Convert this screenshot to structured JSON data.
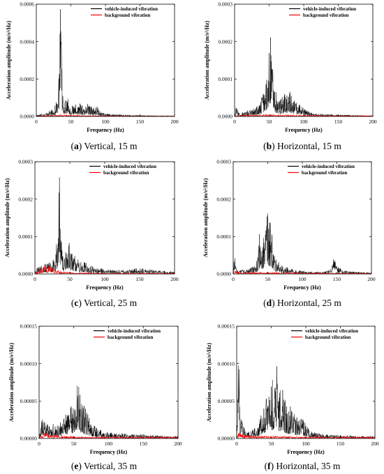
{
  "chart_data": [
    {
      "type": "line",
      "caption_letter": "a",
      "caption_text": "Vertical, 15 m",
      "xlabel": "Frequency (Hz)",
      "ylabel": "Acceleration amplitude (m/s²/Hz)",
      "xlim": [
        0,
        200
      ],
      "ylim": [
        0,
        0.0006
      ],
      "xticks": [
        "0",
        "50",
        "100",
        "150",
        "200"
      ],
      "yticks": [
        "0.0000",
        "0.0002",
        "0.0004",
        "0.0006"
      ],
      "legend": "top-right",
      "grid": false,
      "series": [
        {
          "name": "vehicle-induced vibration",
          "color": "#000000",
          "x": [
            0,
            5,
            10,
            15,
            20,
            25,
            28,
            30,
            32,
            34,
            35,
            36,
            37,
            38,
            40,
            42,
            45,
            48,
            50,
            55,
            60,
            65,
            70,
            75,
            80,
            85,
            88,
            90,
            95,
            100,
            110,
            120,
            130,
            140,
            150,
            160,
            170,
            180,
            190,
            200
          ],
          "y": [
            5e-06,
            1e-05,
            1.5e-05,
            2e-05,
            3e-05,
            4e-05,
            6e-05,
            0.0001,
            0.00018,
            0.00035,
            0.00055,
            0.00042,
            0.00025,
            0.00014,
            8e-05,
            9e-05,
            0.00012,
            7e-05,
            6e-05,
            5e-05,
            7e-05,
            6e-05,
            5e-05,
            7e-05,
            5e-05,
            4e-05,
            6e-05,
            3e-05,
            2e-05,
            1.5e-05,
            1e-05,
            1e-05,
            8e-06,
            6e-06,
            6e-06,
            5e-06,
            5e-06,
            4e-06,
            4e-06,
            3e-06
          ]
        },
        {
          "name": "background vibration",
          "color": "#ff0000",
          "x": [
            0,
            10,
            20,
            30,
            40,
            50,
            60,
            80,
            100,
            120,
            150,
            200
          ],
          "y": [
            2e-06,
            4e-06,
            5e-06,
            8e-06,
            8e-06,
            6e-06,
            5e-06,
            4e-06,
            3e-06,
            3e-06,
            2e-06,
            2e-06
          ]
        }
      ]
    },
    {
      "type": "line",
      "caption_letter": "b",
      "caption_text": "Horizontal, 15 m",
      "xlabel": "Frequency (Hz)",
      "ylabel": "Acceleration amplitude (m/s²/Hz)",
      "xlim": [
        0,
        200
      ],
      "ylim": [
        0,
        0.0003
      ],
      "xticks": [
        "0",
        "50",
        "100",
        "150",
        "200"
      ],
      "yticks": [
        "0.0000",
        "0.0001",
        "0.0002",
        "0.0003"
      ],
      "legend": "top-right",
      "grid": false,
      "series": [
        {
          "name": "vehicle-induced vibration",
          "color": "#000000",
          "x": [
            0,
            3,
            5,
            10,
            20,
            30,
            35,
            40,
            45,
            48,
            50,
            52,
            54,
            56,
            58,
            60,
            62,
            65,
            70,
            75,
            80,
            82,
            85,
            90,
            95,
            100,
            110,
            120,
            130,
            140,
            150,
            160,
            170,
            180,
            190,
            200
          ],
          "y": [
            5e-06,
            3e-05,
            1e-05,
            1e-05,
            1.5e-05,
            2e-05,
            3e-05,
            5e-05,
            0.0001,
            0.00015,
            0.00019,
            0.00023,
            0.00018,
            0.00013,
            9e-05,
            6e-05,
            5e-05,
            4e-05,
            5e-05,
            6e-05,
            7e-05,
            6e-05,
            5e-05,
            4e-05,
            3e-05,
            2e-05,
            1e-05,
            8e-06,
            6e-06,
            5e-06,
            4e-06,
            4e-06,
            3e-06,
            3e-06,
            2e-06,
            2e-06
          ]
        },
        {
          "name": "background vibration",
          "color": "#ff0000",
          "x": [
            0,
            10,
            30,
            50,
            70,
            100,
            150,
            200
          ],
          "y": [
            2e-06,
            3e-06,
            4e-06,
            5e-06,
            4e-06,
            3e-06,
            2e-06,
            2e-06
          ]
        }
      ]
    },
    {
      "type": "line",
      "caption_letter": "c",
      "caption_text": "Vertical, 25 m",
      "xlabel": "Frequency (Hz)",
      "ylabel": "Acceleration amplitude (m/s²/Hz)",
      "xlim": [
        0,
        200
      ],
      "ylim": [
        0,
        0.0003
      ],
      "xticks": [
        "0",
        "50",
        "100",
        "150",
        "200"
      ],
      "yticks": [
        "0.0000",
        "0.0001",
        "0.0002",
        "0.0003"
      ],
      "legend": "top-right",
      "grid": false,
      "series": [
        {
          "name": "vehicle-induced vibration",
          "color": "#000000",
          "x": [
            0,
            5,
            10,
            15,
            20,
            25,
            30,
            32,
            34,
            35,
            36,
            38,
            40,
            42,
            45,
            47,
            50,
            55,
            60,
            65,
            70,
            80,
            90,
            100,
            110,
            120,
            130,
            140,
            150,
            160,
            170,
            180,
            190,
            200
          ],
          "y": [
            1e-05,
            2e-05,
            2e-05,
            3e-05,
            3e-05,
            3e-05,
            5e-05,
            0.0001,
            0.00018,
            0.00026,
            0.0002,
            0.00011,
            6e-05,
            5e-05,
            7e-05,
            9e-05,
            7e-05,
            5e-05,
            4e-05,
            3e-05,
            3e-05,
            2e-05,
            1.5e-05,
            1.2e-05,
            1e-05,
            1e-05,
            1e-05,
            1.2e-05,
            1.5e-05,
            1.2e-05,
            1e-05,
            8e-06,
            7e-06,
            6e-06
          ]
        },
        {
          "name": "background vibration",
          "color": "#ff0000",
          "x": [
            0,
            5,
            10,
            15,
            20,
            25,
            30,
            40,
            50,
            60,
            80,
            100,
            150,
            200
          ],
          "y": [
            5e-06,
            1e-05,
            1.8e-05,
            2.2e-05,
            2e-05,
            1.5e-05,
            1e-05,
            6e-06,
            4e-06,
            3e-06,
            3e-06,
            2e-06,
            2e-06,
            2e-06
          ]
        }
      ]
    },
    {
      "type": "line",
      "caption_letter": "d",
      "caption_text": "Horizontal, 25 m",
      "xlabel": "Frequency (Hz)",
      "ylabel": "Acceleration amplitude (m/s²/Hz)",
      "xlim": [
        0,
        200
      ],
      "ylim": [
        0,
        0.0003
      ],
      "xticks": [
        "0",
        "50",
        "100",
        "150",
        "200"
      ],
      "yticks": [
        "0.0000",
        "0.0001",
        "0.0002",
        "0.0003"
      ],
      "legend": "top-right",
      "grid": false,
      "series": [
        {
          "name": "vehicle-induced vibration",
          "color": "#000000",
          "x": [
            0,
            3,
            5,
            10,
            20,
            30,
            35,
            38,
            40,
            42,
            45,
            48,
            50,
            52,
            54,
            56,
            58,
            60,
            65,
            70,
            80,
            90,
            100,
            110,
            120,
            130,
            140,
            145,
            150,
            160,
            170,
            180,
            190,
            200
          ],
          "y": [
            5e-06,
            8e-05,
            1e-05,
            1e-05,
            1e-05,
            2e-05,
            4e-05,
            0.0001,
            6e-05,
            8e-05,
            0.00011,
            0.00014,
            0.00016,
            0.00012,
            0.00015,
            0.0001,
            7e-05,
            4e-05,
            3e-05,
            2e-05,
            1.5e-05,
            1e-05,
            8e-06,
            6e-06,
            5e-06,
            5e-06,
            1e-05,
            4e-05,
            2e-05,
            8e-06,
            6e-06,
            5e-06,
            4e-06,
            4e-06
          ]
        },
        {
          "name": "background vibration",
          "color": "#ff0000",
          "x": [
            0,
            3,
            10,
            30,
            50,
            100,
            150,
            200
          ],
          "y": [
            2e-06,
            1e-05,
            3e-06,
            4e-06,
            4e-06,
            3e-06,
            2e-06,
            2e-06
          ]
        }
      ]
    },
    {
      "type": "line",
      "caption_letter": "e",
      "caption_text": "Vertical, 35 m",
      "xlabel": "Frequency (Hz)",
      "ylabel": "Acceleration amplitude (m/s²/Hz)",
      "xlim": [
        0,
        200
      ],
      "ylim": [
        0,
        0.00015
      ],
      "xticks": [
        "0",
        "50",
        "100",
        "150",
        "200"
      ],
      "yticks": [
        "0.00000",
        "0.00005",
        "0.00010",
        "0.00015"
      ],
      "legend": "top-right",
      "grid": false,
      "series": [
        {
          "name": "vehicle-induced vibration",
          "color": "#000000",
          "x": [
            0,
            5,
            8,
            10,
            15,
            20,
            25,
            30,
            35,
            40,
            45,
            50,
            52,
            55,
            58,
            60,
            62,
            65,
            70,
            75,
            80,
            85,
            90,
            95,
            100,
            110,
            120,
            130,
            140,
            150,
            160,
            170,
            180,
            190,
            200
          ],
          "y": [
            5e-06,
            3e-05,
            2e-05,
            2e-05,
            1.5e-05,
            1.8e-05,
            1.5e-05,
            2e-05,
            2.8e-05,
            3.5e-05,
            4e-05,
            5e-05,
            6e-05,
            8.5e-05,
            6e-05,
            5e-05,
            4.5e-05,
            4e-05,
            3e-05,
            2e-05,
            1.5e-05,
            1.2e-05,
            1e-05,
            8e-06,
            8e-06,
            6e-06,
            6e-06,
            5e-06,
            5e-06,
            5e-06,
            4e-06,
            4e-06,
            3e-06,
            3e-06,
            3e-06
          ]
        },
        {
          "name": "background vibration",
          "color": "#ff0000",
          "x": [
            0,
            5,
            10,
            15,
            20,
            30,
            40,
            50,
            60,
            100,
            150,
            200
          ],
          "y": [
            2e-06,
            5e-06,
            8e-06,
            7e-06,
            5e-06,
            4e-06,
            3e-06,
            3e-06,
            2e-06,
            2e-06,
            2e-06,
            2e-06
          ]
        }
      ]
    },
    {
      "type": "line",
      "caption_letter": "f",
      "caption_text": "Horizontal, 35 m",
      "xlabel": "Frequency (Hz)",
      "ylabel": "Acceleration amplitude (m/s²/Hz)",
      "xlim": [
        0,
        200
      ],
      "ylim": [
        0,
        0.00015
      ],
      "xticks": [
        "0",
        "50",
        "100",
        "150",
        "200"
      ],
      "yticks": [
        "0.00000",
        "0.00005",
        "0.00010",
        "0.00015"
      ],
      "legend": "top-right",
      "grid": false,
      "series": [
        {
          "name": "vehicle-induced vibration",
          "color": "#000000",
          "x": [
            0,
            3,
            5,
            8,
            10,
            15,
            20,
            25,
            30,
            35,
            40,
            45,
            50,
            55,
            58,
            60,
            62,
            65,
            70,
            75,
            80,
            85,
            90,
            95,
            100,
            105,
            110,
            120,
            130,
            140,
            150,
            160,
            170,
            180,
            190,
            200
          ],
          "y": [
            5e-06,
            0.00012,
            3e-05,
            2e-05,
            1.5e-05,
            1e-05,
            1e-05,
            1.2e-05,
            1.5e-05,
            3e-05,
            5e-05,
            6e-05,
            7e-05,
            8e-05,
            9e-05,
            7e-05,
            6e-05,
            7e-05,
            5e-05,
            4e-05,
            4e-05,
            3e-05,
            3e-05,
            2.5e-05,
            2e-05,
            1e-05,
            8e-06,
            6e-06,
            5e-06,
            5e-06,
            4e-06,
            4e-06,
            3e-06,
            3e-06,
            3e-06,
            3e-06
          ]
        },
        {
          "name": "background vibration",
          "color": "#ff0000",
          "x": [
            0,
            3,
            10,
            20,
            30,
            50,
            100,
            150,
            200
          ],
          "y": [
            2e-06,
            8e-06,
            4e-06,
            4e-06,
            3e-06,
            3e-06,
            2e-06,
            2e-06,
            2e-06
          ]
        }
      ]
    }
  ]
}
